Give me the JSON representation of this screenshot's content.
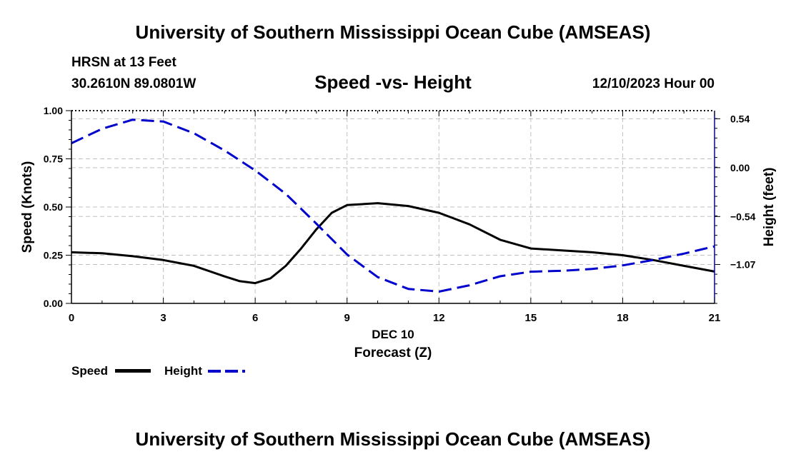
{
  "header": {
    "title": "University of Southern Mississippi Ocean Cube (AMSEAS)",
    "station": "HRSN at 13 Feet",
    "coords": "30.2610N  89.0801W",
    "subtitle": "Speed -vs- Height",
    "datetime": "12/10/2023 Hour 00"
  },
  "footer": {
    "title": "University of Southern Mississippi Ocean Cube (AMSEAS)"
  },
  "legend": {
    "speed_label": "Speed",
    "height_label": "Height"
  },
  "colors": {
    "speed": "#000000",
    "height": "#0000cc",
    "grid": "#c0c0c0"
  },
  "chart_data": {
    "type": "line",
    "title": "Speed -vs- Height",
    "xlabel": "Forecast (Z)",
    "date_label": "DEC 10",
    "ylabel_left": "Speed (Knots)",
    "ylabel_right": "Height (feet)",
    "xlim": [
      0,
      21
    ],
    "ylim_left": [
      0,
      1.0
    ],
    "ylim_right": [
      -1.5,
      0.63
    ],
    "x_ticks": [
      0,
      3,
      6,
      9,
      12,
      15,
      18,
      21
    ],
    "x_tick_labels": [
      "0",
      "3",
      "6",
      "9",
      "12",
      "15",
      "18",
      "21"
    ],
    "y_left_ticks": [
      0,
      0.25,
      0.5,
      0.75,
      1.0
    ],
    "y_left_tick_labels": [
      "0.00",
      "0.25",
      "0.50",
      "0.75",
      "1.00"
    ],
    "y_right_ticks": [
      -1.07,
      -0.54,
      0.0,
      0.54
    ],
    "y_right_tick_labels": [
      "−1.07",
      "−0.54",
      "0.00",
      "0.54"
    ],
    "grid": true,
    "series": [
      {
        "name": "Speed",
        "axis": "left",
        "style": "solid",
        "x": [
          0,
          1,
          2,
          3,
          4,
          5,
          5.5,
          6,
          6.5,
          7,
          7.5,
          8,
          8.5,
          9,
          10,
          11,
          12,
          13,
          14,
          15,
          16,
          17,
          18,
          19,
          20,
          21
        ],
        "y": [
          0.265,
          0.26,
          0.245,
          0.225,
          0.195,
          0.14,
          0.115,
          0.105,
          0.13,
          0.195,
          0.285,
          0.385,
          0.47,
          0.51,
          0.52,
          0.505,
          0.47,
          0.41,
          0.33,
          0.285,
          0.275,
          0.265,
          0.25,
          0.225,
          0.195,
          0.165
        ]
      },
      {
        "name": "Height",
        "axis": "right",
        "style": "dashed",
        "x": [
          0,
          1,
          2,
          3,
          4,
          5,
          6,
          7,
          8,
          9,
          10,
          11,
          12,
          13,
          14,
          15,
          16,
          17,
          18,
          19,
          20,
          21
        ],
        "y": [
          0.27,
          0.43,
          0.53,
          0.51,
          0.38,
          0.19,
          -0.03,
          -0.29,
          -0.62,
          -0.96,
          -1.21,
          -1.34,
          -1.37,
          -1.3,
          -1.2,
          -1.15,
          -1.14,
          -1.12,
          -1.08,
          -1.02,
          -0.95,
          -0.87
        ]
      }
    ]
  }
}
